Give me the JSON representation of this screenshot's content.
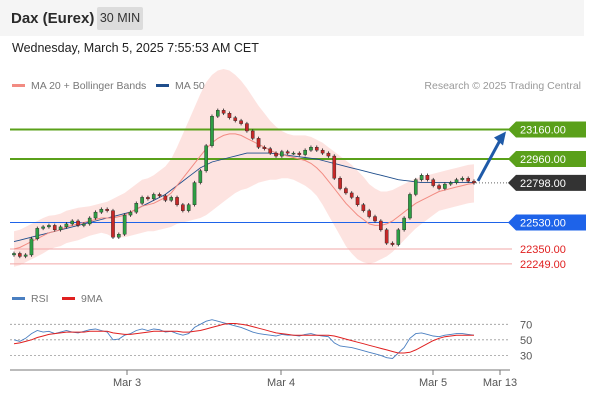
{
  "header": {
    "title": "Dax (Eurex)",
    "timeframe": "30 MIN"
  },
  "timestamp": "Wednesday, March 5, 2025 7:55:53 AM CET",
  "legend": {
    "ma20": {
      "label": "MA 20 + Bollinger Bands",
      "color": "#f28b82"
    },
    "ma50": {
      "label": "MA 50",
      "color": "#1f4e8c"
    }
  },
  "credit": "Research © 2025 Trading Central",
  "rsi_legend": {
    "rsi": {
      "label": "RSI",
      "color": "#4a7fc1"
    },
    "ma": {
      "label": "9MA",
      "color": "#e02020"
    }
  },
  "chart_data": [
    {
      "type": "candlestick",
      "ylim": [
        22140,
        23360
      ],
      "current_price": 22798.0,
      "x_ticks": [
        "Mar 3",
        "Mar 4",
        "Mar 5",
        "Mar 13"
      ],
      "levels": [
        {
          "value": 23160.0,
          "label": "23160.00",
          "color": "#5aa01a",
          "kind": "resistance"
        },
        {
          "value": 22960.0,
          "label": "22960.00",
          "color": "#5aa01a",
          "kind": "resistance"
        },
        {
          "value": 22798.0,
          "label": "22798.00",
          "color": "#333333",
          "kind": "last"
        },
        {
          "value": 22530.0,
          "label": "22530.00",
          "color": "#1e63e9",
          "kind": "pivot"
        },
        {
          "value": 22350.0,
          "label": "22350.00",
          "color": "#e02020",
          "kind": "support"
        },
        {
          "value": 22249.0,
          "label": "22249.00",
          "color": "#e02020",
          "kind": "support"
        }
      ],
      "target_arrow": {
        "from": 22798,
        "to": 23160
      },
      "closes": [
        22320,
        22300,
        22310,
        22420,
        22490,
        22500,
        22510,
        22480,
        22500,
        22520,
        22540,
        22510,
        22520,
        22560,
        22600,
        22620,
        22610,
        22430,
        22450,
        22580,
        22600,
        22660,
        22700,
        22690,
        22720,
        22710,
        22680,
        22700,
        22650,
        22610,
        22650,
        22800,
        22880,
        23050,
        23250,
        23290,
        23270,
        23240,
        23220,
        23200,
        23150,
        23100,
        23040,
        23030,
        23000,
        22980,
        23010,
        23000,
        23000,
        22990,
        23020,
        23040,
        23020,
        23000,
        22980,
        22830,
        22760,
        22730,
        22700,
        22650,
        22610,
        22570,
        22540,
        22480,
        22390,
        22380,
        22480,
        22560,
        22720,
        22820,
        22850,
        22820,
        22780,
        22760,
        22790,
        22800,
        22820,
        22830,
        22810,
        22798
      ],
      "ma20": [
        22350,
        22360,
        22380,
        22400,
        22420,
        22440,
        22460,
        22470,
        22480,
        22500,
        22510,
        22520,
        22530,
        22540,
        22550,
        22560,
        22560,
        22560,
        22570,
        22580,
        22600,
        22620,
        22640,
        22650,
        22660,
        22680,
        22700,
        22730,
        22780,
        22830,
        22880,
        22930,
        22980,
        23030,
        23070,
        23100,
        23120,
        23130,
        23130,
        23120,
        23100,
        23080,
        23060,
        23040,
        23020,
        23000,
        22990,
        22980,
        22970,
        22960,
        22950,
        22930,
        22900,
        22860,
        22810,
        22760,
        22710,
        22660,
        22620,
        22580,
        22550,
        22520,
        22510,
        22510,
        22520,
        22540,
        22570,
        22600,
        22630,
        22660,
        22680,
        22700,
        22720,
        22740,
        22750,
        22760,
        22770,
        22780,
        22790,
        22795
      ],
      "ma50": [
        22400,
        22410,
        22420,
        22430,
        22440,
        22450,
        22460,
        22470,
        22480,
        22490,
        22500,
        22510,
        22520,
        22530,
        22540,
        22550,
        22560,
        22570,
        22580,
        22590,
        22600,
        22620,
        22640,
        22660,
        22680,
        22700,
        22720,
        22750,
        22780,
        22810,
        22840,
        22870,
        22900,
        22920,
        22940,
        22950,
        22960,
        22970,
        22980,
        22990,
        23000,
        23000,
        23000,
        23000,
        23000,
        22995,
        22990,
        22985,
        22980,
        22975,
        22970,
        22965,
        22960,
        22950,
        22940,
        22930,
        22920,
        22910,
        22900,
        22890,
        22880,
        22870,
        22860,
        22850,
        22840,
        22830,
        22820,
        22815,
        22810,
        22805,
        22800,
        22800,
        22800,
        22800,
        22800,
        22800,
        22800,
        22800,
        22800,
        22800
      ],
      "bb_width": [
        120,
        120,
        120,
        120,
        120,
        120,
        115,
        110,
        110,
        110,
        110,
        110,
        105,
        100,
        100,
        100,
        110,
        130,
        140,
        150,
        160,
        170,
        180,
        180,
        190,
        200,
        210,
        230,
        260,
        300,
        340,
        380,
        420,
        450,
        460,
        460,
        450,
        430,
        400,
        370,
        340,
        300,
        260,
        230,
        200,
        180,
        160,
        150,
        150,
        160,
        170,
        180,
        190,
        210,
        230,
        250,
        270,
        290,
        300,
        300,
        290,
        270,
        250,
        230,
        220,
        210,
        200,
        190,
        180,
        170,
        160,
        150,
        140,
        130,
        130,
        130,
        130,
        130,
        130,
        130
      ]
    },
    {
      "type": "line",
      "name": "RSI",
      "ylim": [
        15,
        82
      ],
      "y_ticks": [
        70,
        50,
        30
      ],
      "rsi": [
        50,
        48,
        52,
        58,
        62,
        60,
        61,
        58,
        60,
        62,
        60,
        59,
        61,
        63,
        64,
        62,
        60,
        50,
        51,
        56,
        58,
        62,
        64,
        62,
        64,
        63,
        60,
        61,
        58,
        56,
        58,
        66,
        70,
        74,
        76,
        74,
        72,
        70,
        68,
        66,
        63,
        60,
        58,
        57,
        56,
        55,
        57,
        56,
        56,
        55,
        57,
        58,
        56,
        55,
        54,
        46,
        42,
        41,
        40,
        38,
        36,
        34,
        32,
        30,
        27,
        26,
        33,
        40,
        52,
        58,
        59,
        57,
        55,
        54,
        56,
        57,
        58,
        58,
        57,
        56
      ],
      "ma9": [
        45,
        46,
        48,
        50,
        53,
        55,
        57,
        58,
        59,
        60,
        60,
        60,
        60,
        61,
        61,
        61,
        61,
        59,
        58,
        57,
        57,
        58,
        59,
        60,
        61,
        61,
        61,
        61,
        61,
        60,
        60,
        61,
        62,
        64,
        66,
        68,
        70,
        71,
        71,
        70,
        69,
        67,
        65,
        63,
        61,
        59,
        58,
        57,
        56,
        56,
        56,
        56,
        56,
        56,
        56,
        55,
        53,
        51,
        49,
        47,
        45,
        43,
        41,
        39,
        37,
        35,
        33,
        33,
        34,
        37,
        41,
        45,
        49,
        52,
        54,
        55,
        56,
        56,
        56,
        56
      ]
    }
  ]
}
